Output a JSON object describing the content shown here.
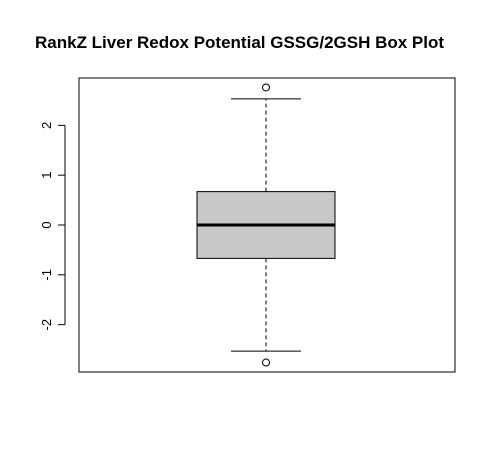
{
  "chart_data": {
    "type": "box",
    "title": "RankZ Liver Redox Potential GSSG/2GSH Box Plot",
    "xlabel": "",
    "ylabel": "",
    "ylim": [
      -2.95,
      2.95
    ],
    "y_ticks": [
      -2,
      -1,
      0,
      1,
      2
    ],
    "y_tick_labels": [
      "-2",
      "-1",
      "0",
      "1",
      "2"
    ],
    "grid": false,
    "box": {
      "min_whisker": -2.53,
      "q1": -0.67,
      "median": 0.0,
      "q3": 0.67,
      "max_whisker": 2.53,
      "outliers": [
        2.76,
        -2.76
      ]
    },
    "colors": {
      "box_fill": "#c8c8c8",
      "stroke": "#000000"
    }
  }
}
